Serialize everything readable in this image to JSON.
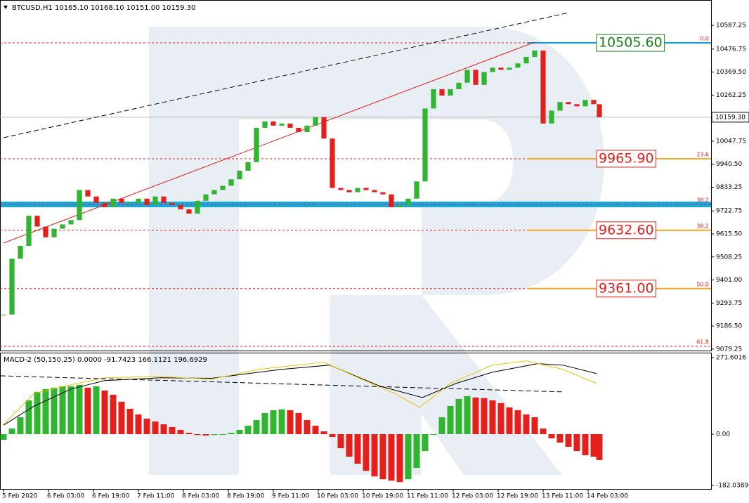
{
  "chart_data": [
    {
      "type": "candlestick",
      "title": "BTCUSD,H1  10165.10 10168.10 10151.00 10159.30",
      "x": [
        0,
        3,
        6,
        9,
        12,
        15,
        18,
        21,
        24,
        27,
        30,
        33,
        36,
        39,
        42,
        45,
        48,
        51,
        54,
        57,
        60,
        63,
        66,
        69,
        72,
        75,
        78,
        81,
        84,
        87,
        90,
        93,
        96,
        99,
        102,
        105,
        108,
        111,
        114,
        117,
        120,
        123,
        126,
        129,
        132,
        135,
        138,
        141,
        144,
        147,
        150,
        153,
        156,
        159,
        162,
        165,
        168,
        171,
        174,
        177,
        180,
        183,
        186,
        189,
        192,
        195,
        198,
        201,
        204,
        207,
        210,
        212
      ],
      "values": [
        9240,
        9500,
        9560,
        9700,
        9650,
        9600,
        9640,
        9660,
        9680,
        9820,
        9790,
        9760,
        9740,
        9780,
        9760,
        9760,
        9780,
        9750,
        9790,
        9760,
        9750,
        9730,
        9710,
        9770,
        9800,
        9820,
        9840,
        9870,
        9910,
        9950,
        10110,
        10140,
        10120,
        10130,
        10110,
        10090,
        10120,
        10160,
        10060,
        9830,
        9820,
        9810,
        9830,
        9820,
        9810,
        9800,
        9740,
        9750,
        9780,
        9860,
        10200,
        10290,
        10260,
        10290,
        10320,
        10380,
        10310,
        10370,
        10390,
        10380,
        10390,
        10410,
        10440,
        10470,
        10130,
        10190,
        10230,
        10220,
        10210,
        10240,
        10220,
        10159.3
      ],
      "colors": {
        "up": "#2fb52f",
        "down": "#e3201c"
      },
      "xlim": [
        -1.25,
        251.75
      ],
      "ylim": [
        9069,
        10689
      ],
      "yticks": [
        10587.25,
        10476.75,
        {
          "value": 10369.5,
          "label": "10369.50"
        },
        10262.25,
        10047.75,
        {
          "value": 9940.5,
          "label": "9940.50"
        },
        9833.25,
        9722.75,
        {
          "value": 9615.5,
          "label": "9615.50"
        },
        9508.25,
        {
          "value": 9401,
          "label": "9401.00"
        },
        9293.75,
        {
          "value": 9186.5,
          "label": "9186.50"
        },
        9079.25
      ],
      "current_price": {
        "value": 10159.3,
        "label": "10159.30"
      },
      "fib_levels": [
        {
          "value": 10505.6,
          "label": "0.0",
          "price_label": "10505.60",
          "color": "#16a0d8",
          "text_color": "#1a7f1a"
        },
        {
          "value": 9965.9,
          "label": "23.6",
          "price_label": "9965.90",
          "color": "#f5a623",
          "text_color": "#e3201c"
        },
        {
          "value": 9753,
          "label": "38.2"
        },
        {
          "value": 9632.6,
          "label": "38.2",
          "price_label": "9632.60",
          "color": "#f5a623",
          "text_color": "#e3201c"
        },
        {
          "value": 9361,
          "label": "50.0",
          "price_label": "9361.00",
          "color": "#f5a623",
          "text_color": "#e3201c"
        },
        {
          "value": 9092,
          "label": "61.8"
        }
      ],
      "band": {
        "value": 9753,
        "color": "#16a8e0"
      },
      "lines": [
        {
          "x": [
            0,
            201
          ],
          "values": [
            10064,
            10646
          ],
          "color": "#000000",
          "dash": true
        },
        {
          "x": [
            0,
            189
          ],
          "values": [
            9573,
            10509
          ],
          "color": "#e3201c",
          "dash": false
        }
      ]
    },
    {
      "type": "macd",
      "title": "MACD-2 (50,150,25) 0.0000 -91.7423 166.1121 196.6929",
      "x": [
        0,
        3,
        6,
        9,
        12,
        15,
        18,
        21,
        24,
        27,
        30,
        33,
        36,
        39,
        42,
        45,
        48,
        51,
        54,
        57,
        60,
        63,
        66,
        69,
        72,
        75,
        78,
        81,
        84,
        87,
        90,
        93,
        96,
        99,
        102,
        105,
        108,
        111,
        114,
        117,
        120,
        123,
        126,
        129,
        132,
        135,
        138,
        141,
        144,
        147,
        150,
        153,
        156,
        159,
        162,
        165,
        168,
        171,
        174,
        177,
        180,
        183,
        186,
        189,
        192,
        195,
        198,
        201,
        204,
        207,
        210,
        212
      ],
      "values": [
        -20,
        20,
        60,
        120,
        150,
        160,
        165,
        170,
        170,
        175,
        165,
        170,
        155,
        140,
        115,
        90,
        70,
        55,
        45,
        35,
        25,
        15,
        5,
        -3,
        -5,
        -3,
        0,
        5,
        15,
        30,
        50,
        75,
        85,
        88,
        85,
        75,
        50,
        30,
        10,
        -10,
        -50,
        -80,
        -105,
        -130,
        -150,
        -160,
        -165,
        -170,
        -160,
        -120,
        -60,
        0,
        60,
        100,
        125,
        135,
        130,
        128,
        120,
        110,
        95,
        85,
        70,
        60,
        20,
        -15,
        -30,
        -45,
        -60,
        -75,
        -80,
        -92
      ],
      "colors": {
        "up": "#2fb52f",
        "down": "#e3201c"
      },
      "lines": [
        {
          "x": [
            0,
            11,
            24,
            36,
            56,
            74,
            99,
            116,
            134,
            149,
            161,
            174,
            190,
            199,
            211
          ],
          "values": [
            32,
            100,
            160,
            190,
            200,
            198,
            230,
            245,
            170,
            130,
            180,
            220,
            250,
            245,
            215
          ],
          "color": "#000000",
          "dash": false
        },
        {
          "x": [
            0,
            11,
            24,
            36,
            54,
            74,
            91,
            114,
            124,
            139,
            148,
            159,
            174,
            186,
            199,
            211
          ],
          "values": [
            35,
            145,
            175,
            200,
            205,
            195,
            230,
            255,
            210,
            145,
            95,
            180,
            245,
            260,
            230,
            180
          ],
          "color": "#f0c000",
          "dash": false
        },
        {
          "x": [
            -1,
            199
          ],
          "values": [
            207,
            150
          ],
          "color": "#000000",
          "dash": true
        }
      ],
      "xlim": [
        -1.25,
        251.75
      ],
      "ylim": [
        -196.9,
        286.6
      ],
      "yticks": [
        271.6016,
        {
          "value": 0,
          "label": "0.00"
        },
        -182.0389
      ],
      "xticks": [
        {
          "value": 0,
          "label": "5 Feb 2020"
        },
        {
          "value": 16,
          "label": "6 Feb 03:00"
        },
        {
          "value": 32,
          "label": "6 Feb 19:00"
        },
        {
          "value": 48,
          "label": "7 Feb 11:00"
        },
        {
          "value": 64,
          "label": "8 Feb 03:00"
        },
        {
          "value": 80,
          "label": "8 Feb 19:00"
        },
        {
          "value": 96,
          "label": "9 Feb 11:00"
        },
        {
          "value": 112,
          "label": "10 Feb 03:00"
        },
        {
          "value": 128,
          "label": "10 Feb 19:00"
        },
        {
          "value": 144,
          "label": "11 Feb 11:00"
        },
        {
          "value": 160,
          "label": "12 Feb 03:00"
        },
        {
          "value": 176,
          "label": "12 Feb 19:00"
        },
        {
          "value": 192,
          "label": "13 Feb 11:00"
        },
        {
          "value": 208,
          "label": "14 Feb 03:00"
        }
      ]
    }
  ]
}
